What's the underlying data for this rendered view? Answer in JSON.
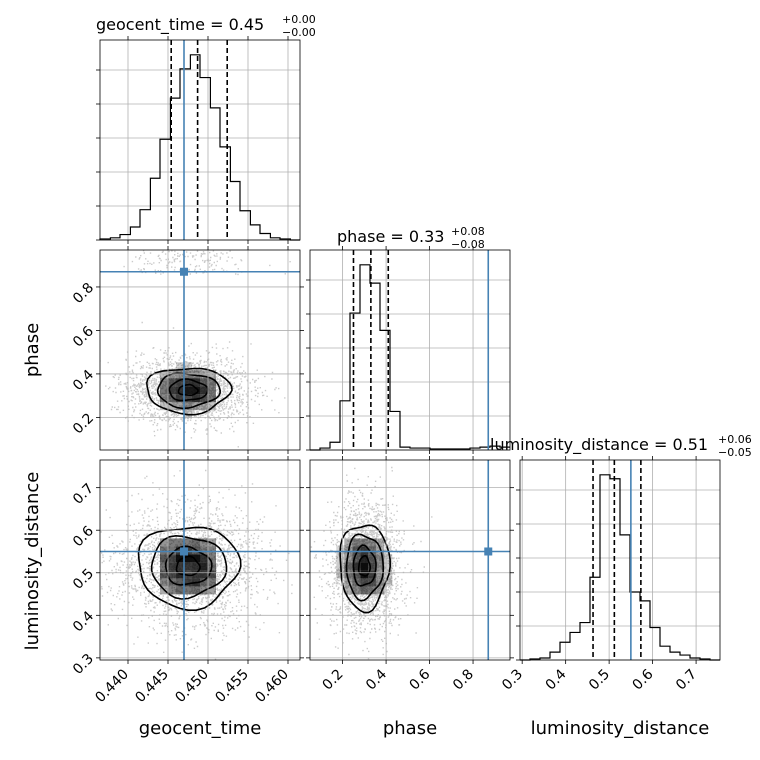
{
  "chart_data": {
    "type": "corner",
    "parameters": [
      "geocent_time",
      "phase",
      "luminosity_distance"
    ],
    "truths": {
      "geocent_time": 0.447,
      "phase": 0.87,
      "luminosity_distance": 0.55
    },
    "colors": {
      "truth": "#4682b4",
      "histogram": "#000000",
      "grid": "#b0b0b0",
      "points": "#a0a0a0",
      "density": "#000000"
    },
    "grid": true,
    "panels": [
      {
        "name": "geocent_time",
        "title": {
          "main": "geocent_time = 0.45",
          "sup": "+0.00",
          "sub": "−0.00"
        },
        "xlim": [
          0.4365,
          0.4615
        ],
        "xticks": [
          0.44,
          0.445,
          0.45,
          0.455,
          0.46
        ],
        "xtick_labels": [
          "0.440",
          "0.445",
          "0.450",
          "0.455",
          "0.460"
        ],
        "xlabel": "geocent_time",
        "quantiles": [
          0.4454,
          0.4487,
          0.4524
        ],
        "hist_edges": [
          0.4365,
          0.4378,
          0.439,
          0.4403,
          0.4415,
          0.4428,
          0.444,
          0.4453,
          0.4465,
          0.4478,
          0.449,
          0.4503,
          0.4515,
          0.4528,
          0.454,
          0.4553,
          0.4565,
          0.4578,
          0.459,
          0.4603,
          0.4615
        ],
        "hist_counts": [
          1,
          2,
          5,
          12,
          28,
          57,
          93,
          131,
          158,
          171,
          150,
          122,
          86,
          54,
          27,
          14,
          6,
          2,
          1,
          0
        ]
      },
      {
        "name": "phase",
        "title": {
          "main": "phase = 0.33",
          "sup": "+0.08",
          "sub": "−0.08"
        },
        "xlim": [
          0.05,
          0.97
        ],
        "xticks": [
          0.2,
          0.4,
          0.6,
          0.8
        ],
        "xtick_labels": [
          "0.2",
          "0.4",
          "0.6",
          "0.8"
        ],
        "xlabel": "phase",
        "quantiles": [
          0.25,
          0.33,
          0.41
        ],
        "hist_edges": [
          0.05,
          0.096,
          0.142,
          0.188,
          0.234,
          0.28,
          0.326,
          0.372,
          0.418,
          0.464,
          0.51,
          0.556,
          0.602,
          0.648,
          0.694,
          0.74,
          0.786,
          0.832,
          0.878,
          0.924,
          0.97
        ],
        "hist_counts": [
          0,
          2,
          8,
          51,
          142,
          192,
          173,
          124,
          40,
          3,
          2,
          2,
          1,
          1,
          1,
          1,
          2,
          3,
          4,
          3
        ]
      },
      {
        "name": "luminosity_distance",
        "title": {
          "main": "luminosity_distance = 0.51",
          "sup": "+0.06",
          "sub": "−0.05"
        },
        "xlim": [
          0.295,
          0.755
        ],
        "xticks": [
          0.3,
          0.4,
          0.5,
          0.6,
          0.7
        ],
        "xtick_labels": [
          "0.3",
          "0.4",
          "0.5",
          "0.6",
          "0.7"
        ],
        "xlabel": "luminosity_distance",
        "quantiles": [
          0.463,
          0.512,
          0.573
        ],
        "hist_edges": [
          0.295,
          0.318,
          0.341,
          0.364,
          0.387,
          0.41,
          0.433,
          0.456,
          0.479,
          0.502,
          0.525,
          0.548,
          0.571,
          0.594,
          0.617,
          0.64,
          0.663,
          0.686,
          0.709,
          0.732,
          0.755
        ],
        "hist_counts": [
          0,
          1,
          2,
          8,
          18,
          28,
          38,
          84,
          188,
          184,
          127,
          69,
          60,
          33,
          14,
          8,
          5,
          2,
          1,
          0
        ]
      }
    ],
    "pairs": [
      {
        "x": "geocent_time",
        "y": "phase",
        "ylim": [
          0.05,
          0.97
        ],
        "yticks": [
          0.2,
          0.4,
          0.6,
          0.8
        ],
        "ytick_labels": [
          "0.2",
          "0.4",
          "0.6",
          "0.8"
        ],
        "ylabel": "phase",
        "center": [
          0.4475,
          0.325
        ],
        "spread": [
          0.003,
          0.06
        ],
        "contour_levels": [
          0.4,
          0.8,
          1.3,
          1.75
        ],
        "outlier_band": [
          0.86,
          0.97
        ]
      },
      {
        "x": "geocent_time",
        "y": "luminosity_distance",
        "ylim": [
          0.295,
          0.765
        ],
        "yticks": [
          0.3,
          0.4,
          0.5,
          0.6,
          0.7
        ],
        "ytick_labels": [
          "0.3",
          "0.4",
          "0.5",
          "0.6",
          "0.7"
        ],
        "ylabel": "luminosity_distance",
        "center": [
          0.4475,
          0.515
        ],
        "spread": [
          0.0036,
          0.055
        ],
        "contour_levels": [
          0.4,
          0.8,
          1.3,
          1.75
        ]
      },
      {
        "x": "phase",
        "y": "luminosity_distance",
        "ylim": [
          0.295,
          0.765
        ],
        "center": [
          0.3,
          0.515
        ],
        "spread": [
          0.065,
          0.058
        ],
        "contour_levels": [
          0.4,
          0.8,
          1.3,
          1.75
        ]
      }
    ]
  }
}
